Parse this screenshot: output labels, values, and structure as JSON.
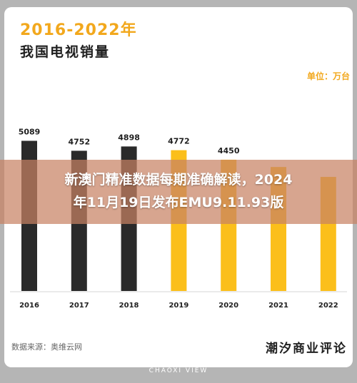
{
  "header": {
    "title": "2016-2022年",
    "subtitle": "我国电视销量",
    "unit": "单位：万台"
  },
  "footer": {
    "source": "数据来源：奥维云网",
    "brand": "潮汐商业评论",
    "watermark": "CHAOXI VIEW"
  },
  "overlay": {
    "line1": "新澳门精准数据每期准确解读，2024",
    "line2": "年11月19日发布EMU9.11.93版"
  },
  "colors": {
    "dark_bar": "#2a2a2a",
    "highlight_bar": "#fbbf1b",
    "accent": "#f2a81d"
  },
  "chart_data": {
    "type": "bar",
    "title": "2016-2022年",
    "subtitle": "我国电视销量",
    "categories": [
      "2016",
      "2017",
      "2018",
      "2019",
      "2020",
      "2021",
      "2022"
    ],
    "values": [
      5089,
      4752,
      4898,
      4772,
      4450,
      4202,
      3866
    ],
    "value_labels": [
      "5089",
      "4752",
      "4898",
      "4772",
      "4450",
      "",
      ""
    ],
    "bar_colors": [
      "#2a2a2a",
      "#2a2a2a",
      "#2a2a2a",
      "#fbbf1b",
      "#fbbf1b",
      "#fbbf1b",
      "#fbbf1b"
    ],
    "ylabel": "",
    "unit": "单位：万台",
    "ylim": [
      0,
      5100
    ],
    "grid": false,
    "legend": "none"
  }
}
